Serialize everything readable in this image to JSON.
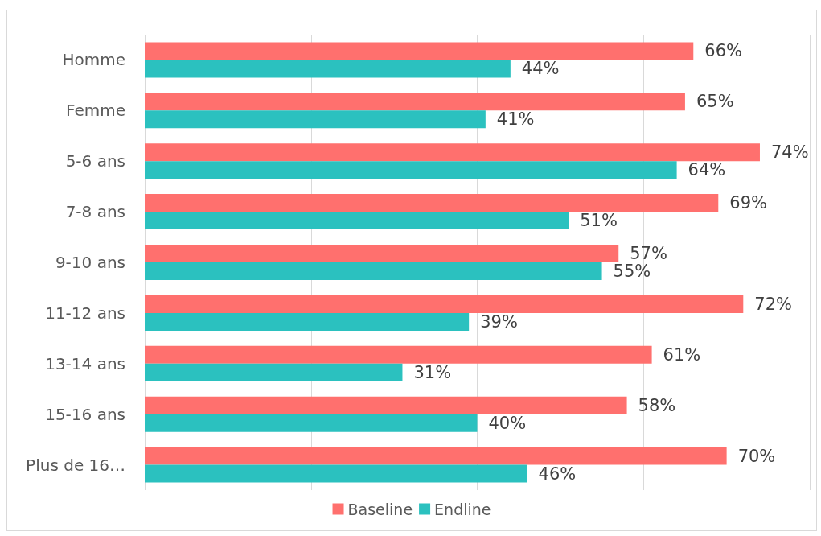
{
  "chart_data": {
    "type": "bar",
    "orientation": "horizontal",
    "categories": [
      "Homme",
      "Femme",
      "5-6 ans",
      "7-8 ans",
      "9-10 ans",
      "11-12 ans",
      "13-14 ans",
      "15-16 ans",
      "Plus de 16…"
    ],
    "series": [
      {
        "name": "Baseline",
        "color": "#ff706e",
        "values": [
          66,
          65,
          74,
          69,
          57,
          72,
          61,
          58,
          70
        ],
        "value_labels": [
          "66%",
          "65%",
          "74%",
          "69%",
          "57%",
          "72%",
          "61%",
          "58%",
          "70%"
        ]
      },
      {
        "name": "Endline",
        "color": "#2bc1bf",
        "values": [
          44,
          41,
          64,
          51,
          55,
          39,
          31,
          40,
          46
        ],
        "value_labels": [
          "44%",
          "41%",
          "64%",
          "51%",
          "55%",
          "39%",
          "31%",
          "40%",
          "46%"
        ]
      }
    ],
    "xlim": [
      0,
      80
    ],
    "xticks": [
      {
        "value": 0,
        "label": null
      },
      {
        "value": 20,
        "label": null
      },
      {
        "value": 40,
        "label": null
      },
      {
        "value": 60,
        "label": null
      },
      {
        "value": 80,
        "label": null
      }
    ],
    "grid": "x",
    "legend": "bottom",
    "tick_labels": "y"
  }
}
